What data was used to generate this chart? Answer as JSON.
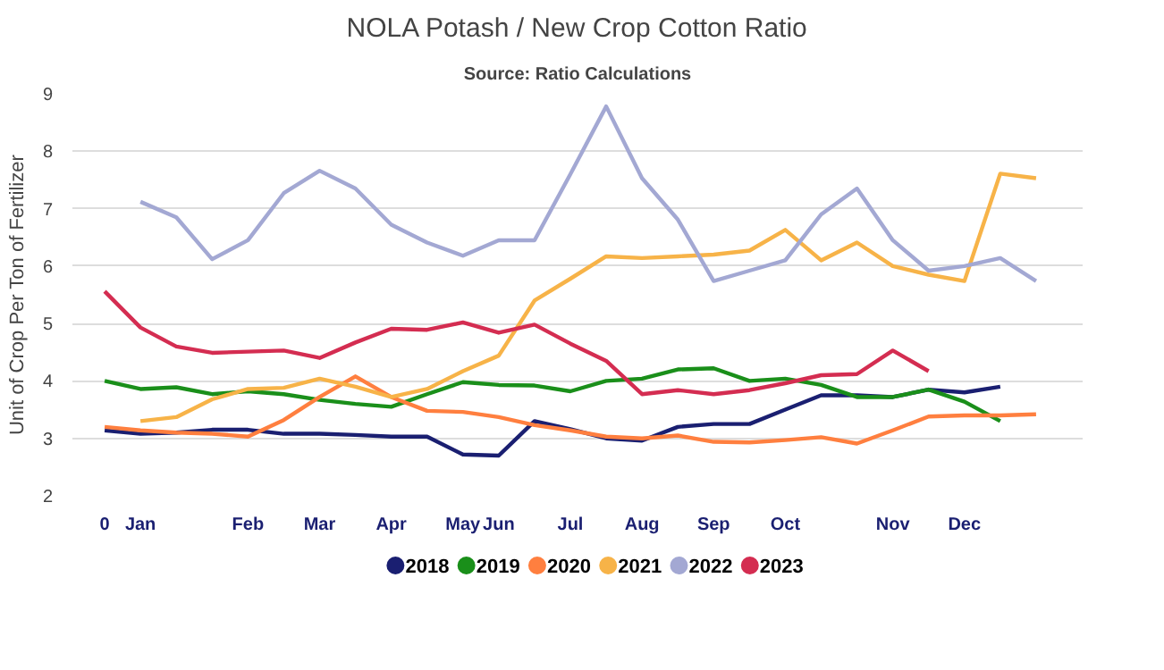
{
  "chart_data": {
    "type": "line",
    "title": "NOLA Potash / New Crop Cotton Ratio",
    "subtitle": "Source: Ratio Calculations",
    "ylabel": "Unit of Crop Per Ton of Fertilizer",
    "categories": [
      "0",
      "Jan",
      null,
      null,
      "Feb",
      null,
      "Mar",
      null,
      "Apr",
      null,
      "May",
      "Jun",
      null,
      "Jul",
      null,
      "Aug",
      null,
      "Sep",
      null,
      "Oct",
      null,
      null,
      "Nov",
      null,
      "Dec",
      null,
      null
    ],
    "ylim": [
      2,
      9
    ],
    "yticks": [
      2,
      3,
      4,
      5,
      6,
      7,
      8,
      9
    ],
    "grid": "y",
    "legend": "bottom",
    "series": [
      {
        "name": "2018",
        "color": "#1a1f71",
        "values": [
          3.14,
          3.08,
          3.1,
          3.15,
          3.15,
          3.08,
          3.08,
          3.06,
          3.03,
          3.03,
          2.72,
          2.7,
          3.3,
          3.16,
          3.0,
          2.96,
          3.2,
          3.25,
          3.25,
          3.5,
          3.75,
          3.75,
          3.72,
          3.85,
          3.8,
          3.9,
          null
        ]
      },
      {
        "name": "2019",
        "color": "#1a8f1a",
        "values": [
          4.0,
          3.86,
          3.89,
          3.77,
          3.82,
          3.77,
          3.67,
          3.6,
          3.55,
          3.77,
          3.98,
          3.93,
          3.92,
          3.82,
          4.0,
          4.04,
          4.2,
          4.22,
          4.0,
          4.04,
          3.93,
          3.72,
          3.72,
          3.85,
          3.64,
          3.3,
          null
        ]
      },
      {
        "name": "2020",
        "color": "#ff7f3f",
        "values": [
          3.2,
          3.14,
          3.1,
          3.08,
          3.03,
          3.32,
          3.72,
          4.08,
          3.72,
          3.48,
          3.46,
          3.37,
          3.23,
          3.14,
          3.03,
          3.0,
          3.05,
          2.94,
          2.93,
          2.97,
          3.02,
          2.91,
          3.14,
          3.38,
          3.4,
          3.4,
          3.42
        ]
      },
      {
        "name": "2021",
        "color": "#f7b348",
        "values": [
          null,
          3.3,
          3.37,
          3.68,
          3.86,
          3.88,
          4.04,
          3.9,
          3.72,
          3.86,
          4.17,
          4.44,
          5.4,
          5.78,
          6.17,
          6.14,
          6.17,
          6.2,
          6.27,
          6.63,
          6.1,
          6.41,
          6.0,
          5.85,
          5.74,
          7.61,
          7.53
        ]
      },
      {
        "name": "2022",
        "color": "#a3a8d3",
        "values": [
          null,
          7.12,
          6.85,
          6.12,
          6.45,
          7.27,
          7.66,
          7.35,
          6.72,
          6.41,
          6.18,
          6.45,
          6.45,
          7.6,
          8.78,
          7.53,
          6.81,
          5.74,
          5.92,
          6.1,
          6.9,
          7.35,
          6.45,
          5.92,
          6.0,
          6.14,
          5.74
        ]
      },
      {
        "name": "2023",
        "color": "#d42d51",
        "values": [
          5.56,
          4.93,
          4.6,
          4.49,
          4.51,
          4.53,
          4.4,
          4.67,
          4.91,
          4.89,
          5.02,
          4.84,
          4.98,
          4.65,
          4.35,
          3.77,
          3.84,
          3.77,
          3.84,
          3.96,
          4.1,
          4.12,
          4.53,
          4.17,
          null,
          null,
          null
        ]
      }
    ]
  }
}
